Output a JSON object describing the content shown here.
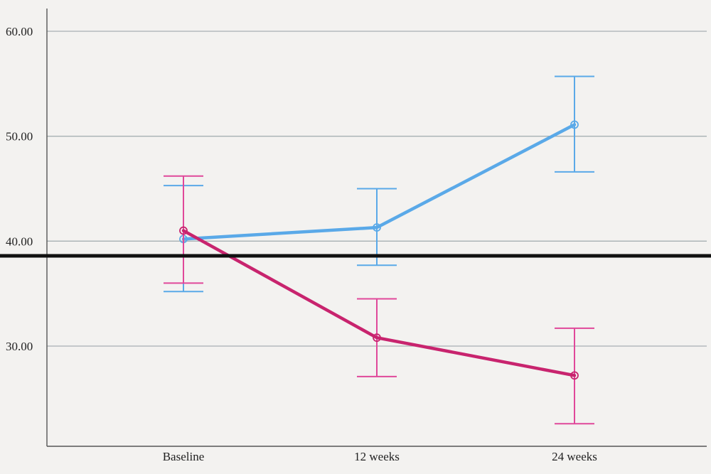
{
  "chart_data": {
    "type": "line",
    "title": "",
    "xlabel": "",
    "ylabel": "",
    "categories": [
      "Baseline",
      "12 weeks",
      "24 weeks"
    ],
    "ylim": [
      20,
      62
    ],
    "yticks": [
      "60.00",
      "50.00",
      "40.00",
      "30.00"
    ],
    "ytick_values": [
      60,
      50,
      40,
      30
    ],
    "grid": true,
    "legend": "none",
    "reference_line": {
      "value": 38.6,
      "color": "#111111"
    },
    "series": [
      {
        "color": "#5aa9e8",
        "values": [
          40.2,
          41.3,
          51.1
        ],
        "error_low": [
          35.2,
          37.7,
          46.6
        ],
        "error_high": [
          45.3,
          45.0,
          55.7
        ]
      },
      {
        "color": "#c8246e",
        "error_color": "#e0489a",
        "values": [
          41.0,
          30.8,
          27.2
        ],
        "error_low": [
          36.0,
          27.1,
          22.6
        ],
        "error_high": [
          46.2,
          34.5,
          31.7
        ]
      }
    ]
  }
}
